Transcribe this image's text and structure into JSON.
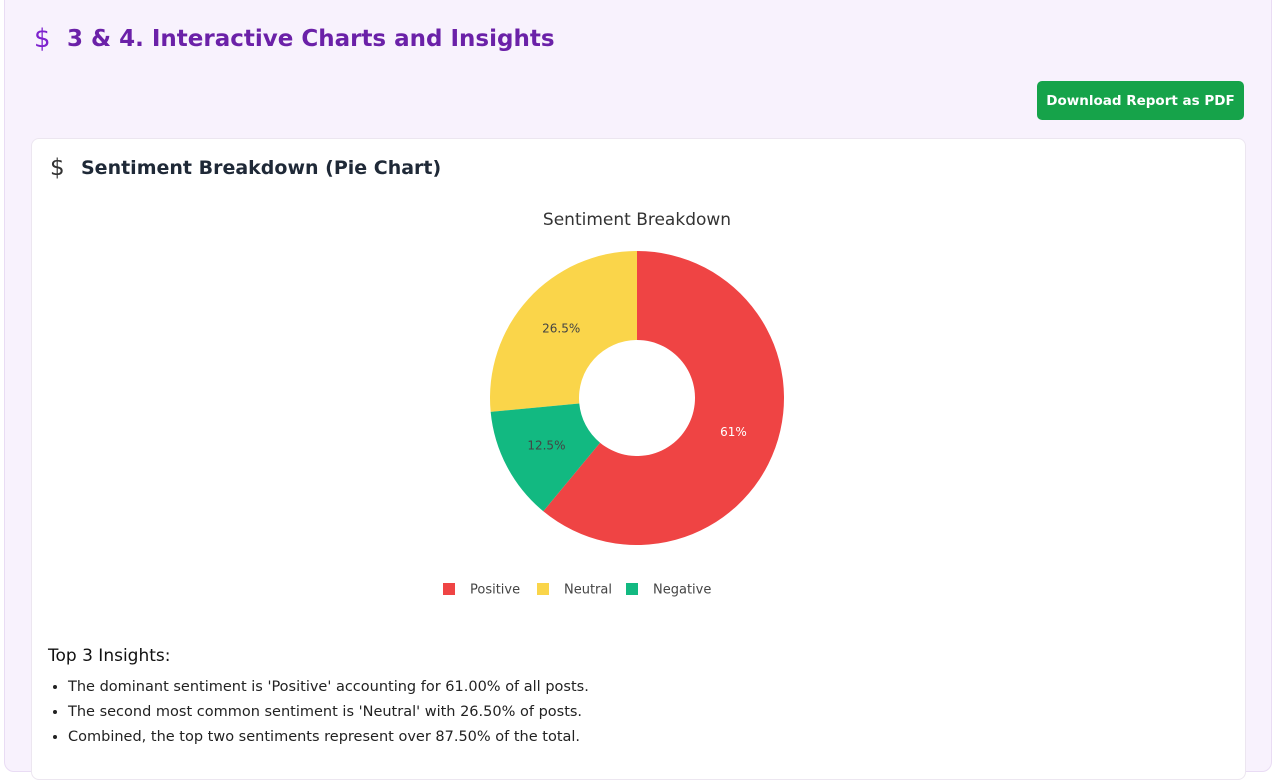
{
  "header": {
    "icon": "$",
    "title": "3 & 4. Interactive Charts and Insights"
  },
  "button": {
    "label": "Download Report as PDF"
  },
  "card": {
    "icon": "$",
    "title": "Sentiment Breakdown (Pie Chart)"
  },
  "chart_data": {
    "type": "pie",
    "title": "Sentiment Breakdown",
    "categories": [
      "Positive",
      "Neutral",
      "Negative"
    ],
    "values": [
      61,
      26.5,
      12.5
    ],
    "value_labels": [
      "61%",
      "26.5%",
      "12.5%"
    ],
    "colors": [
      "#ef4444",
      "#fad54a",
      "#12b981"
    ],
    "hole": true,
    "legend": "bottom"
  },
  "insights": {
    "title": "Top 3 Insights:",
    "items": [
      "The dominant sentiment is 'Positive' accounting for 61.00% of all posts.",
      "The second most common sentiment is 'Neutral' with 26.50% of posts.",
      "Combined, the top two sentiments represent over 87.50% of the total."
    ]
  }
}
